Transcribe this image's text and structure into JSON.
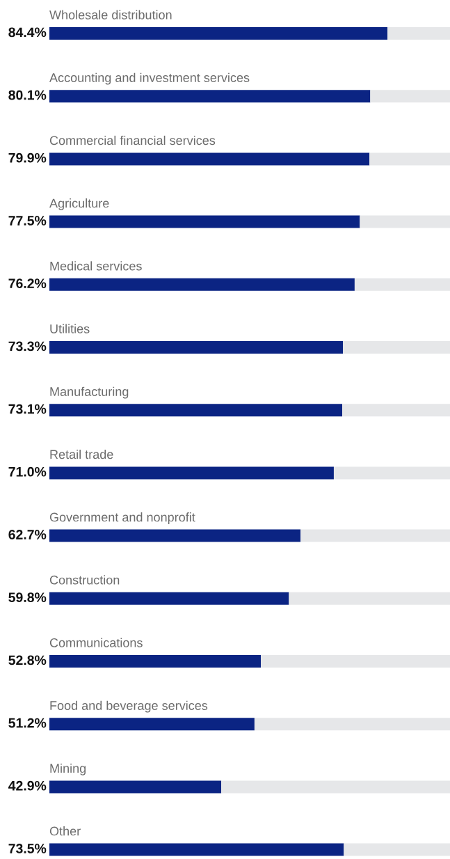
{
  "chart_data": {
    "type": "bar",
    "orientation": "horizontal",
    "stacked": true,
    "categories": [
      "Wholesale distribution",
      "Accounting and investment services",
      "Commercial financial services",
      "Agriculture",
      "Medical services",
      "Utilities",
      "Manufacturing",
      "Retail trade",
      "Government and nonprofit",
      "Construction",
      "Communications",
      "Food and beverage services",
      "Mining",
      "Other"
    ],
    "series": [
      {
        "color": "#0b2483",
        "values": [
          84.4,
          80.1,
          79.9,
          77.5,
          76.2,
          73.3,
          73.1,
          71.0,
          62.7,
          59.8,
          52.8,
          51.2,
          42.9,
          73.5
        ],
        "value_labels": [
          "84.4%",
          "80.1%",
          "79.9%",
          "77.5%",
          "76.2%",
          "73.3%",
          "73.1%",
          "71.0%",
          "62.7%",
          "59.8%",
          "52.8%",
          "51.2%",
          "42.9%",
          "73.5%"
        ]
      },
      {
        "color": "#e6e7e9",
        "values": [
          15.6,
          19.9,
          20.1,
          22.5,
          23.8,
          26.7,
          26.9,
          29.0,
          37.3,
          40.2,
          47.2,
          48.8,
          57.1,
          26.5
        ]
      }
    ],
    "xlim": [
      0,
      100
    ],
    "legend": false
  }
}
